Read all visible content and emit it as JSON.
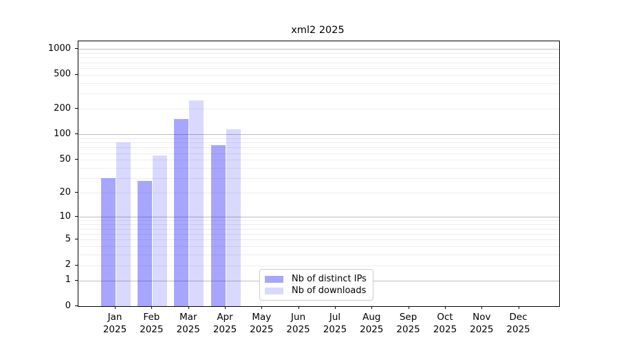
{
  "chart_data": {
    "type": "bar",
    "title": "xml2 2025",
    "categories": [
      "Jan",
      "Feb",
      "Mar",
      "Apr",
      "May",
      "Jun",
      "Jul",
      "Aug",
      "Sep",
      "Oct",
      "Nov",
      "Dec"
    ],
    "x_tick_second_line": "2025",
    "series": [
      {
        "name": "Nb of distinct IPs",
        "color": "#0000ff",
        "alpha": 0.35,
        "values": [
          30,
          28,
          152,
          75,
          0,
          0,
          0,
          0,
          0,
          0,
          0,
          0
        ]
      },
      {
        "name": "Nb of downloads",
        "color": "#0000ff",
        "alpha": 0.15,
        "values": [
          80,
          56,
          252,
          114,
          0,
          0,
          0,
          0,
          0,
          0,
          0,
          0
        ]
      }
    ],
    "xlabel": "",
    "ylabel": "",
    "y_ticks": [
      0,
      1,
      2,
      5,
      10,
      20,
      50,
      100,
      200,
      500,
      1000
    ],
    "ylim": [
      0,
      1230
    ],
    "yscale": "log1p",
    "grid": {
      "major_decades": [
        1,
        10,
        100,
        1000
      ],
      "major_color": "#bdbdbd",
      "minor_color": "#ededed",
      "minor_on": true
    },
    "legend": {
      "location": "inside-bottom-center-left",
      "border_color": "#cccccc",
      "bg_color": "#ffffff"
    }
  }
}
